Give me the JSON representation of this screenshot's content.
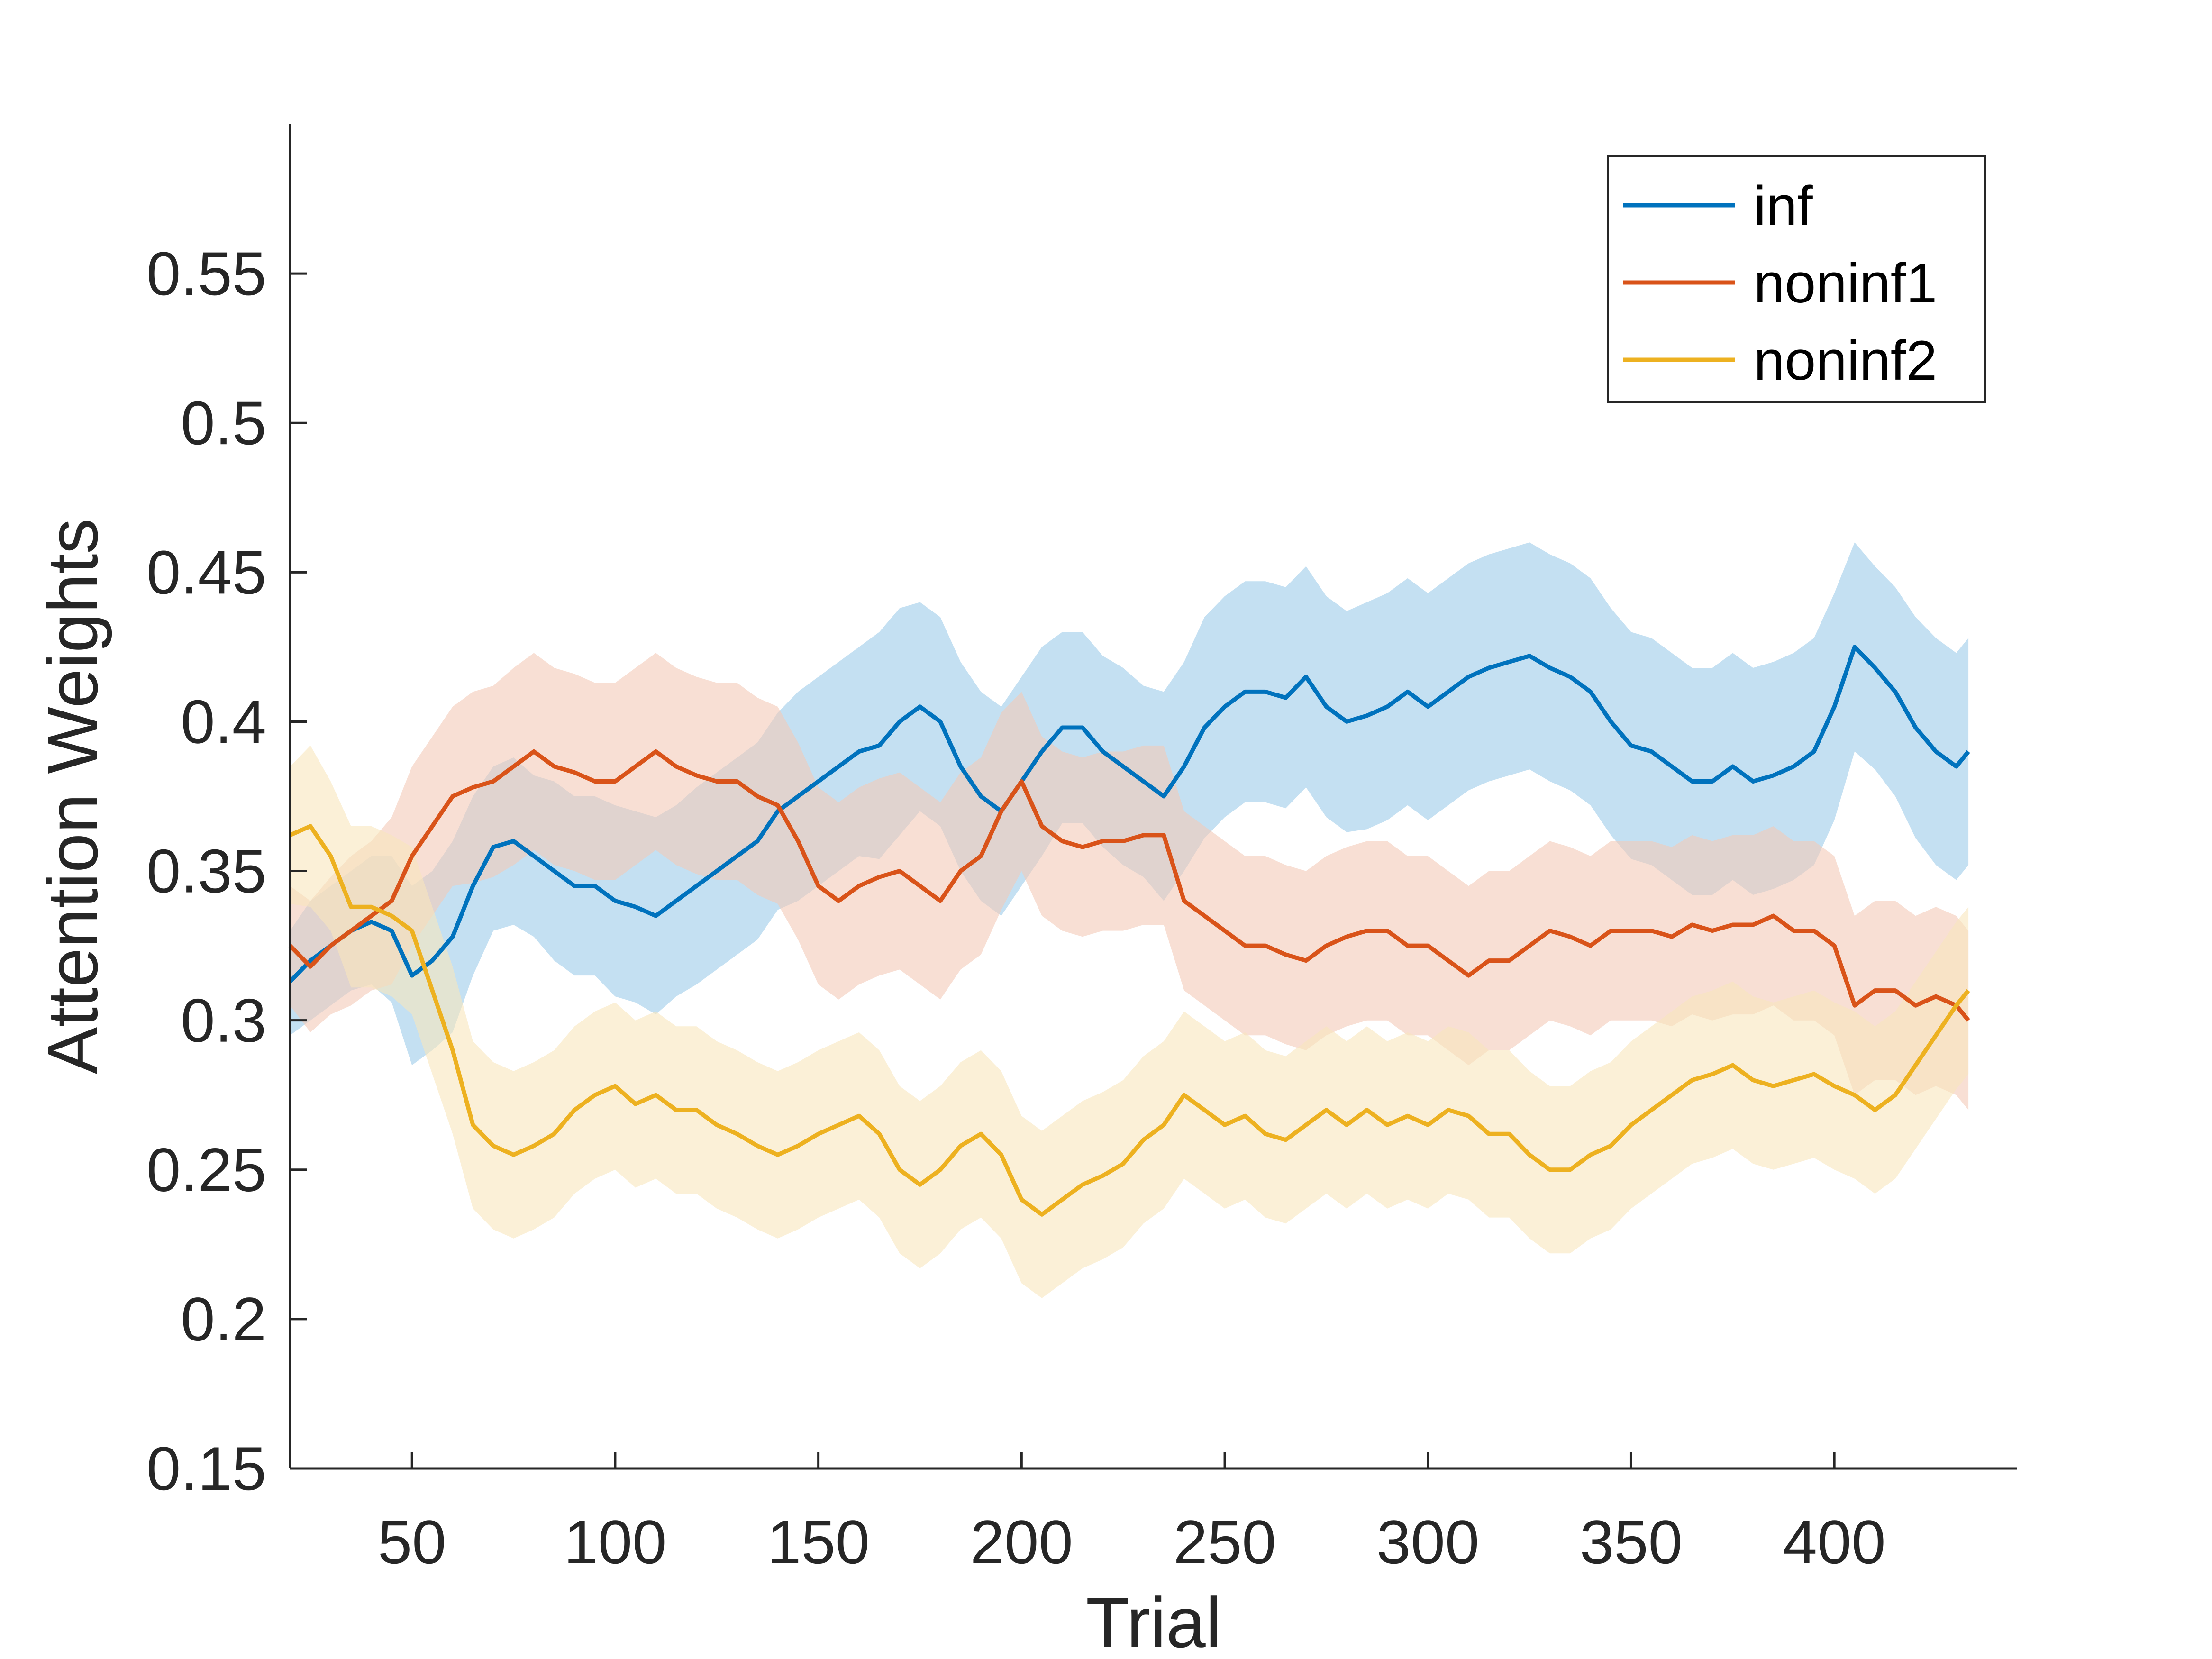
{
  "chart_data": {
    "type": "line",
    "title": "",
    "xlabel": "Trial",
    "ylabel": "Attention Weights",
    "xlim": [
      20,
      445
    ],
    "ylim": [
      0.15,
      0.6
    ],
    "xticks": [
      50,
      100,
      150,
      200,
      250,
      300,
      350,
      400
    ],
    "xtick_labels": [
      "50",
      "100",
      "150",
      "200",
      "250",
      "300",
      "350",
      "400"
    ],
    "yticks": [
      0.15,
      0.2,
      0.25,
      0.3,
      0.35,
      0.4,
      0.45,
      0.5,
      0.55
    ],
    "ytick_labels": [
      "0.15",
      "0.2",
      "0.25",
      "0.3",
      "0.35",
      "0.4",
      "0.45",
      "0.5",
      "0.55"
    ],
    "grid": false,
    "legend_position": "top-right",
    "x": [
      20,
      25,
      30,
      35,
      40,
      45,
      50,
      55,
      60,
      65,
      70,
      75,
      80,
      85,
      90,
      95,
      100,
      105,
      110,
      115,
      120,
      125,
      130,
      135,
      140,
      145,
      150,
      155,
      160,
      165,
      170,
      175,
      180,
      185,
      190,
      195,
      200,
      205,
      210,
      215,
      220,
      225,
      230,
      235,
      240,
      245,
      250,
      255,
      260,
      265,
      270,
      275,
      280,
      285,
      290,
      295,
      300,
      305,
      310,
      315,
      320,
      325,
      330,
      335,
      340,
      345,
      350,
      355,
      360,
      365,
      370,
      375,
      380,
      385,
      390,
      395,
      400,
      405,
      410,
      415,
      420,
      425,
      430,
      433
    ],
    "series": [
      {
        "name": "inf",
        "color": "#0072BD",
        "band_color": "#9DCCEA",
        "values": [
          0.313,
          0.32,
          0.325,
          0.33,
          0.333,
          0.33,
          0.315,
          0.32,
          0.328,
          0.345,
          0.358,
          0.36,
          0.355,
          0.35,
          0.345,
          0.345,
          0.34,
          0.338,
          0.335,
          0.34,
          0.345,
          0.35,
          0.355,
          0.36,
          0.37,
          0.375,
          0.38,
          0.385,
          0.39,
          0.392,
          0.4,
          0.405,
          0.4,
          0.385,
          0.375,
          0.37,
          0.38,
          0.39,
          0.398,
          0.398,
          0.39,
          0.385,
          0.38,
          0.375,
          0.385,
          0.398,
          0.405,
          0.41,
          0.41,
          0.408,
          0.415,
          0.405,
          0.4,
          0.402,
          0.405,
          0.41,
          0.405,
          0.41,
          0.415,
          0.418,
          0.42,
          0.422,
          0.418,
          0.415,
          0.41,
          0.4,
          0.392,
          0.39,
          0.385,
          0.38,
          0.38,
          0.385,
          0.38,
          0.382,
          0.385,
          0.39,
          0.405,
          0.425,
          0.418,
          0.41,
          0.398,
          0.39,
          0.385,
          0.39
        ],
        "upper": [
          0.33,
          0.34,
          0.345,
          0.35,
          0.355,
          0.355,
          0.345,
          0.35,
          0.36,
          0.375,
          0.385,
          0.388,
          0.382,
          0.38,
          0.375,
          0.375,
          0.372,
          0.37,
          0.368,
          0.372,
          0.378,
          0.383,
          0.388,
          0.393,
          0.403,
          0.41,
          0.415,
          0.42,
          0.425,
          0.43,
          0.438,
          0.44,
          0.435,
          0.42,
          0.41,
          0.405,
          0.415,
          0.425,
          0.43,
          0.43,
          0.422,
          0.418,
          0.412,
          0.41,
          0.42,
          0.435,
          0.442,
          0.447,
          0.447,
          0.445,
          0.452,
          0.442,
          0.437,
          0.44,
          0.443,
          0.448,
          0.443,
          0.448,
          0.453,
          0.456,
          0.458,
          0.46,
          0.456,
          0.453,
          0.448,
          0.438,
          0.43,
          0.428,
          0.423,
          0.418,
          0.418,
          0.423,
          0.418,
          0.42,
          0.423,
          0.428,
          0.443,
          0.46,
          0.452,
          0.445,
          0.435,
          0.428,
          0.423,
          0.428
        ],
        "lower": [
          0.295,
          0.3,
          0.305,
          0.31,
          0.312,
          0.306,
          0.285,
          0.29,
          0.296,
          0.315,
          0.33,
          0.332,
          0.328,
          0.32,
          0.315,
          0.315,
          0.308,
          0.306,
          0.302,
          0.308,
          0.312,
          0.317,
          0.322,
          0.327,
          0.337,
          0.34,
          0.345,
          0.35,
          0.355,
          0.354,
          0.362,
          0.37,
          0.365,
          0.35,
          0.34,
          0.335,
          0.345,
          0.355,
          0.366,
          0.366,
          0.358,
          0.352,
          0.348,
          0.34,
          0.35,
          0.361,
          0.368,
          0.373,
          0.373,
          0.371,
          0.378,
          0.368,
          0.363,
          0.364,
          0.367,
          0.372,
          0.367,
          0.372,
          0.377,
          0.38,
          0.382,
          0.384,
          0.38,
          0.377,
          0.372,
          0.362,
          0.354,
          0.352,
          0.347,
          0.342,
          0.342,
          0.347,
          0.342,
          0.344,
          0.347,
          0.352,
          0.367,
          0.39,
          0.384,
          0.375,
          0.361,
          0.352,
          0.347,
          0.352
        ]
      },
      {
        "name": "noninf1",
        "color": "#D95319",
        "band_color": "#F3C9B7",
        "values": [
          0.325,
          0.318,
          0.325,
          0.33,
          0.335,
          0.34,
          0.355,
          0.365,
          0.375,
          0.378,
          0.38,
          0.385,
          0.39,
          0.385,
          0.383,
          0.38,
          0.38,
          0.385,
          0.39,
          0.385,
          0.382,
          0.38,
          0.38,
          0.375,
          0.372,
          0.36,
          0.345,
          0.34,
          0.345,
          0.348,
          0.35,
          0.345,
          0.34,
          0.35,
          0.355,
          0.37,
          0.38,
          0.365,
          0.36,
          0.358,
          0.36,
          0.36,
          0.362,
          0.362,
          0.34,
          0.335,
          0.33,
          0.325,
          0.325,
          0.322,
          0.32,
          0.325,
          0.328,
          0.33,
          0.33,
          0.325,
          0.325,
          0.32,
          0.315,
          0.32,
          0.32,
          0.325,
          0.33,
          0.328,
          0.325,
          0.33,
          0.33,
          0.33,
          0.328,
          0.332,
          0.33,
          0.332,
          0.332,
          0.335,
          0.33,
          0.33,
          0.325,
          0.305,
          0.31,
          0.31,
          0.305,
          0.308,
          0.305,
          0.3
        ],
        "upper": [
          0.345,
          0.34,
          0.348,
          0.355,
          0.36,
          0.368,
          0.385,
          0.395,
          0.405,
          0.41,
          0.412,
          0.418,
          0.423,
          0.418,
          0.416,
          0.413,
          0.413,
          0.418,
          0.423,
          0.418,
          0.415,
          0.413,
          0.413,
          0.408,
          0.405,
          0.393,
          0.378,
          0.373,
          0.378,
          0.381,
          0.383,
          0.378,
          0.373,
          0.383,
          0.388,
          0.403,
          0.41,
          0.395,
          0.39,
          0.388,
          0.39,
          0.39,
          0.392,
          0.392,
          0.37,
          0.365,
          0.36,
          0.355,
          0.355,
          0.352,
          0.35,
          0.355,
          0.358,
          0.36,
          0.36,
          0.355,
          0.355,
          0.35,
          0.345,
          0.35,
          0.35,
          0.355,
          0.36,
          0.358,
          0.355,
          0.36,
          0.36,
          0.36,
          0.358,
          0.362,
          0.36,
          0.362,
          0.362,
          0.365,
          0.36,
          0.36,
          0.355,
          0.335,
          0.34,
          0.34,
          0.335,
          0.338,
          0.335,
          0.33
        ],
        "lower": [
          0.305,
          0.296,
          0.302,
          0.305,
          0.31,
          0.312,
          0.325,
          0.335,
          0.345,
          0.346,
          0.348,
          0.352,
          0.357,
          0.352,
          0.35,
          0.347,
          0.347,
          0.352,
          0.357,
          0.352,
          0.349,
          0.347,
          0.347,
          0.342,
          0.339,
          0.327,
          0.312,
          0.307,
          0.312,
          0.315,
          0.317,
          0.312,
          0.307,
          0.317,
          0.322,
          0.337,
          0.35,
          0.335,
          0.33,
          0.328,
          0.33,
          0.33,
          0.332,
          0.332,
          0.31,
          0.305,
          0.3,
          0.295,
          0.295,
          0.292,
          0.29,
          0.295,
          0.298,
          0.3,
          0.3,
          0.295,
          0.295,
          0.29,
          0.285,
          0.29,
          0.29,
          0.295,
          0.3,
          0.298,
          0.295,
          0.3,
          0.3,
          0.3,
          0.298,
          0.302,
          0.3,
          0.302,
          0.302,
          0.305,
          0.3,
          0.3,
          0.295,
          0.275,
          0.28,
          0.28,
          0.275,
          0.278,
          0.275,
          0.27
        ]
      },
      {
        "name": "noninf2",
        "color": "#EDB120",
        "band_color": "#F9E6BC",
        "values": [
          0.362,
          0.365,
          0.355,
          0.338,
          0.338,
          0.335,
          0.33,
          0.31,
          0.29,
          0.265,
          0.258,
          0.255,
          0.258,
          0.262,
          0.27,
          0.275,
          0.278,
          0.272,
          0.275,
          0.27,
          0.27,
          0.265,
          0.262,
          0.258,
          0.255,
          0.258,
          0.262,
          0.265,
          0.268,
          0.262,
          0.25,
          0.245,
          0.25,
          0.258,
          0.262,
          0.255,
          0.24,
          0.235,
          0.24,
          0.245,
          0.248,
          0.252,
          0.26,
          0.265,
          0.275,
          0.27,
          0.265,
          0.268,
          0.262,
          0.26,
          0.265,
          0.27,
          0.265,
          0.27,
          0.265,
          0.268,
          0.265,
          0.27,
          0.268,
          0.262,
          0.262,
          0.255,
          0.25,
          0.25,
          0.255,
          0.258,
          0.265,
          0.27,
          0.275,
          0.28,
          0.282,
          0.285,
          0.28,
          0.278,
          0.28,
          0.282,
          0.278,
          0.275,
          0.27,
          0.275,
          0.285,
          0.295,
          0.305,
          0.31
        ],
        "upper": [
          0.385,
          0.392,
          0.38,
          0.365,
          0.365,
          0.362,
          0.358,
          0.338,
          0.318,
          0.293,
          0.286,
          0.283,
          0.286,
          0.29,
          0.298,
          0.303,
          0.306,
          0.3,
          0.303,
          0.298,
          0.298,
          0.293,
          0.29,
          0.286,
          0.283,
          0.286,
          0.29,
          0.293,
          0.296,
          0.29,
          0.278,
          0.273,
          0.278,
          0.286,
          0.29,
          0.283,
          0.268,
          0.263,
          0.268,
          0.273,
          0.276,
          0.28,
          0.288,
          0.293,
          0.303,
          0.298,
          0.293,
          0.296,
          0.29,
          0.288,
          0.293,
          0.298,
          0.293,
          0.298,
          0.293,
          0.296,
          0.293,
          0.298,
          0.296,
          0.29,
          0.29,
          0.283,
          0.278,
          0.278,
          0.283,
          0.286,
          0.293,
          0.298,
          0.303,
          0.308,
          0.31,
          0.313,
          0.308,
          0.306,
          0.308,
          0.31,
          0.306,
          0.303,
          0.298,
          0.303,
          0.313,
          0.323,
          0.333,
          0.338
        ],
        "lower": [
          0.339,
          0.338,
          0.33,
          0.311,
          0.311,
          0.308,
          0.302,
          0.282,
          0.262,
          0.237,
          0.23,
          0.227,
          0.23,
          0.234,
          0.242,
          0.247,
          0.25,
          0.244,
          0.247,
          0.242,
          0.242,
          0.237,
          0.234,
          0.23,
          0.227,
          0.23,
          0.234,
          0.237,
          0.24,
          0.234,
          0.222,
          0.217,
          0.222,
          0.23,
          0.234,
          0.227,
          0.212,
          0.207,
          0.212,
          0.217,
          0.22,
          0.224,
          0.232,
          0.237,
          0.247,
          0.242,
          0.237,
          0.24,
          0.234,
          0.232,
          0.237,
          0.242,
          0.237,
          0.242,
          0.237,
          0.24,
          0.237,
          0.242,
          0.24,
          0.234,
          0.234,
          0.227,
          0.222,
          0.222,
          0.227,
          0.23,
          0.237,
          0.242,
          0.247,
          0.252,
          0.254,
          0.257,
          0.252,
          0.25,
          0.252,
          0.254,
          0.25,
          0.247,
          0.242,
          0.247,
          0.257,
          0.267,
          0.277,
          0.282
        ]
      }
    ]
  }
}
